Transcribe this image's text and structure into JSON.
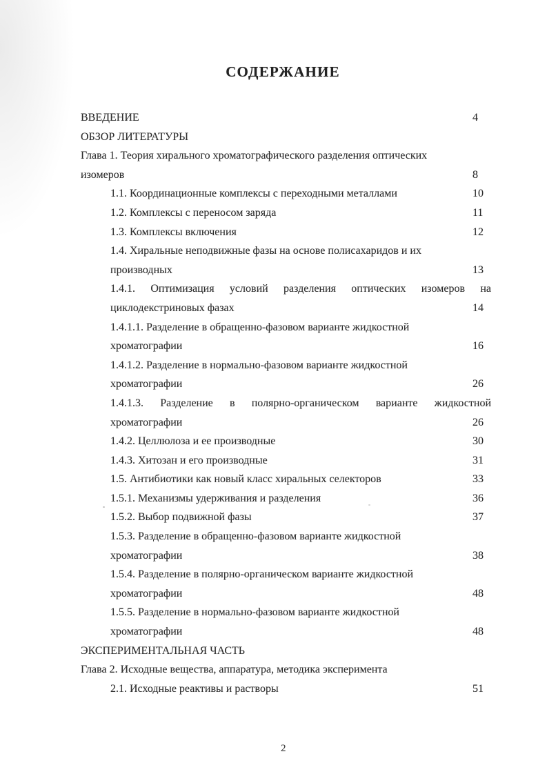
{
  "document": {
    "title": "СОДЕРЖАНИЕ",
    "footer_page_number": "2",
    "entries": [
      {
        "text": "ВВЕДЕНИЕ",
        "page": "4",
        "indent": 0,
        "justify": false
      },
      {
        "text": "ОБЗОР ЛИТЕРАТУРЫ",
        "page": "",
        "indent": 0,
        "justify": false
      },
      {
        "text": "Глава 1. Теория хирального хроматографического разделения оптических",
        "page": "",
        "indent": 0,
        "justify": false
      },
      {
        "text": "изомеров",
        "page": "8",
        "indent": 0,
        "justify": false
      },
      {
        "text": "1.1. Координационные комплексы с переходными металлами",
        "page": "10",
        "indent": 1,
        "justify": false
      },
      {
        "text": "1.2. Комплексы с переносом заряда",
        "page": "11",
        "indent": 1,
        "justify": false
      },
      {
        "text": "1.3. Комплексы включения",
        "page": "12",
        "indent": 1,
        "justify": false
      },
      {
        "text": "1.4. Хиральные неподвижные фазы на основе полисахаридов и их",
        "page": "",
        "indent": 1,
        "justify": false
      },
      {
        "text": "производных",
        "page": "13",
        "indent": 1,
        "justify": false
      },
      {
        "text": "1.4.1. Оптимизация условий разделения оптических изомеров на",
        "page": "",
        "indent": 1,
        "justify": true
      },
      {
        "text": "циклодекстриновых фазах",
        "page": "14",
        "indent": 1,
        "justify": false
      },
      {
        "text": "1.4.1.1. Разделение в обращенно-фазовом варианте жидкостной",
        "page": "",
        "indent": 1,
        "justify": false
      },
      {
        "text": "хроматографии",
        "page": "16",
        "indent": 1,
        "justify": false
      },
      {
        "text": "1.4.1.2. Разделение в нормально-фазовом варианте жидкостной",
        "page": "",
        "indent": 1,
        "justify": false
      },
      {
        "text": "хроматографии",
        "page": "26",
        "indent": 1,
        "justify": false
      },
      {
        "text": "1.4.1.3. Разделение в полярно-органическом варианте жидкостной",
        "page": "",
        "indent": 1,
        "justify": true
      },
      {
        "text": "хроматографии",
        "page": "26",
        "indent": 1,
        "justify": false
      },
      {
        "text": "1.4.2. Целлюлоза и ее производные",
        "page": "30",
        "indent": 1,
        "justify": false
      },
      {
        "text": "1.4.3. Хитозан и его производные",
        "page": "31",
        "indent": 1,
        "justify": false
      },
      {
        "text": "1.5. Антибиотики как новый класс хиральных селекторов",
        "page": "33",
        "indent": 1,
        "justify": false
      },
      {
        "text": "1.5.1. Механизмы удерживания и разделения",
        "page": "36",
        "indent": 1,
        "justify": false
      },
      {
        "text": "1.5.2. Выбор подвижной фазы",
        "page": "37",
        "indent": 1,
        "justify": false
      },
      {
        "text": "1.5.3. Разделение в обращенно-фазовом варианте жидкостной",
        "page": "",
        "indent": 1,
        "justify": false
      },
      {
        "text": "хроматографии",
        "page": "38",
        "indent": 1,
        "justify": false
      },
      {
        "text": "1.5.4. Разделение в полярно-органическом варианте жидкостной",
        "page": "",
        "indent": 1,
        "justify": false
      },
      {
        "text": "хроматографии",
        "page": "48",
        "indent": 1,
        "justify": false
      },
      {
        "text": "1.5.5. Разделение в нормально-фазовом варианте жидкостной",
        "page": "",
        "indent": 1,
        "justify": false
      },
      {
        "text": "хроматографии",
        "page": "48",
        "indent": 1,
        "justify": false
      },
      {
        "text": "ЭКСПЕРИМЕНТАЛЬНАЯ ЧАСТЬ",
        "page": "",
        "indent": 0,
        "justify": false
      },
      {
        "text": "Глава 2. Исходные вещества, аппаратура, методика эксперимента",
        "page": "",
        "indent": 0,
        "justify": false
      },
      {
        "text": "2.1. Исходные реактивы и растворы",
        "page": "51",
        "indent": 1,
        "justify": false
      }
    ]
  }
}
